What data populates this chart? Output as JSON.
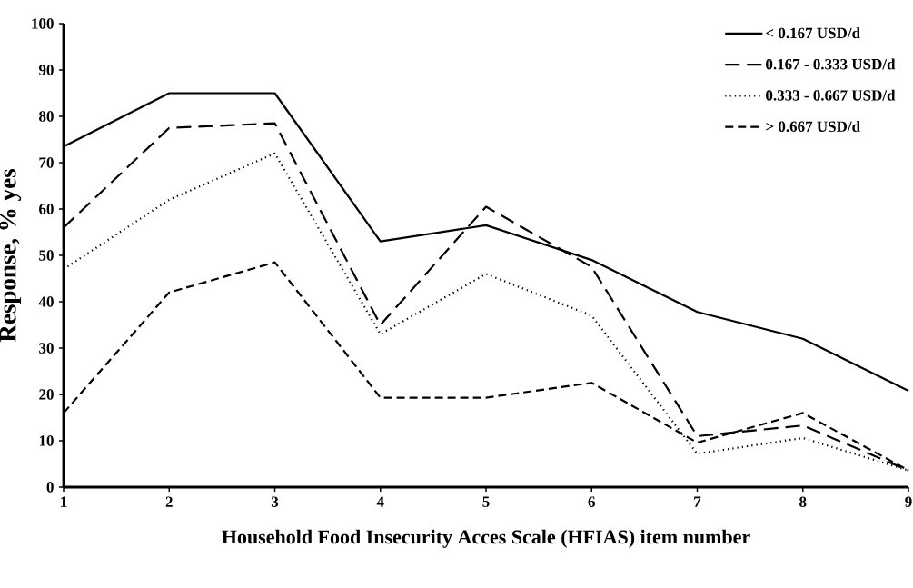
{
  "chart_data": {
    "type": "line",
    "xlabel": "Household Food Insecurity Acces Scale (HFIAS) item number",
    "ylabel": "Response, % yes",
    "x": [
      1,
      2,
      3,
      4,
      5,
      6,
      7,
      8,
      9
    ],
    "series": [
      {
        "name": "< 0.167 USD/d",
        "color": "#000000",
        "line_style": "solid",
        "values": [
          73.5,
          85,
          85,
          53,
          56.5,
          49,
          37.8,
          32,
          20.8
        ]
      },
      {
        "name": "0.167 - 0.333 USD/d",
        "color": "#000000",
        "line_style": "dashed",
        "values": [
          56,
          77.5,
          78.5,
          35,
          60.5,
          47.5,
          11,
          13.3,
          3.6
        ]
      },
      {
        "name": "0.333 - 0.667 USD/d",
        "color": "#000000",
        "line_style": "dotted",
        "values": [
          47,
          62,
          72,
          33,
          46,
          37,
          7.2,
          10.6,
          3.6
        ]
      },
      {
        "name": "> 0.667 USD/d",
        "color": "#000000",
        "line_style": "dashed",
        "values": [
          16,
          42,
          48.5,
          19.3,
          19.3,
          22.5,
          9.6,
          16,
          3.6
        ]
      }
    ],
    "xlim": [
      1,
      9
    ],
    "xticks": [
      1,
      2,
      3,
      4,
      5,
      6,
      7,
      8,
      9
    ],
    "ylim": [
      0,
      100
    ],
    "yticks": [
      0,
      10,
      20,
      30,
      40,
      50,
      60,
      70,
      80,
      90,
      100
    ],
    "legend": "top right"
  }
}
